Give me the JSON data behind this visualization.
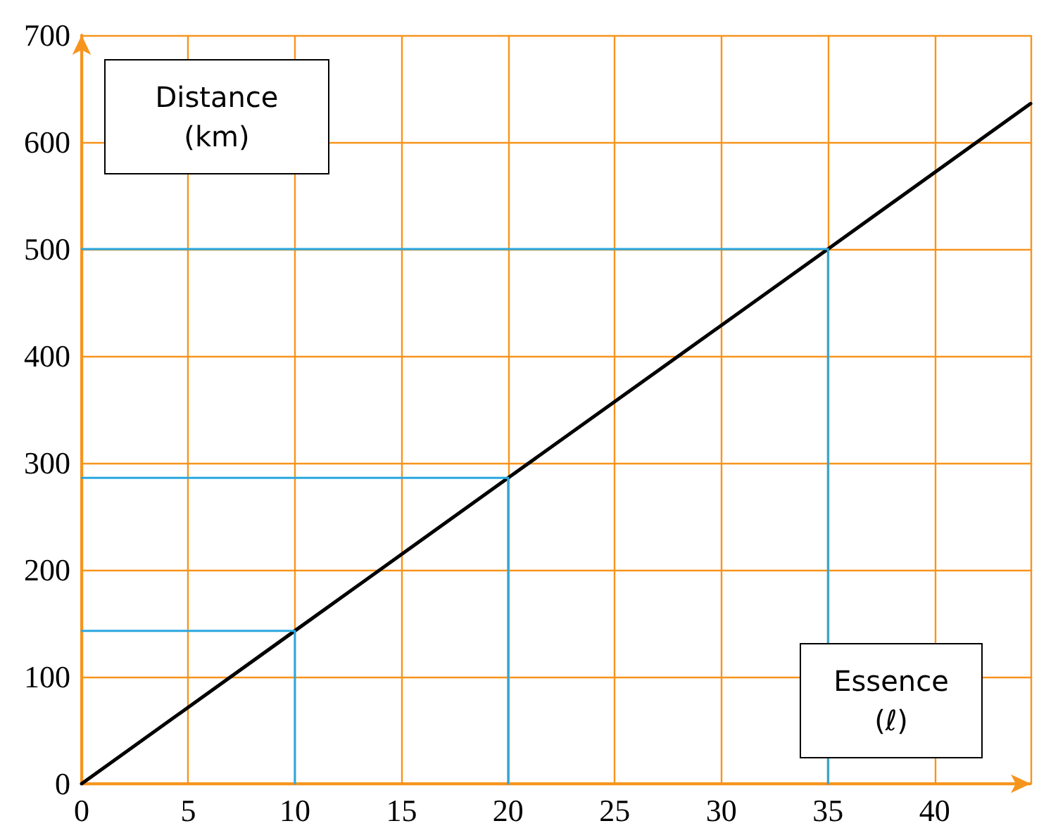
{
  "chart_data": {
    "type": "line",
    "xlabel": "Essence (ℓ)",
    "ylabel": "Distance\n(km)",
    "xlim": [
      0,
      44.5
    ],
    "xticks": [
      0,
      5,
      10,
      15,
      20,
      25,
      30,
      35,
      40
    ],
    "ylim": [
      0,
      700
    ],
    "yticks": [
      0,
      100,
      200,
      300,
      400,
      500,
      600,
      700
    ],
    "grid": true,
    "marker": "none",
    "line_style": "solid",
    "series": [
      {
        "color": "#000000",
        "x": [
          0,
          10,
          20,
          35,
          44.5
        ],
        "values": [
          0,
          143,
          286,
          500,
          636
        ]
      },
      {
        "color": "#29a8e0",
        "x": [
          0,
          10,
          10
        ],
        "values": [
          143,
          143,
          0
        ]
      },
      {
        "color": "#29a8e0",
        "x": [
          0,
          20,
          20
        ],
        "values": [
          286,
          286,
          0
        ]
      },
      {
        "color": "#29a8e0",
        "x": [
          0,
          35,
          35
        ],
        "values": [
          500,
          500,
          0
        ]
      }
    ]
  }
}
